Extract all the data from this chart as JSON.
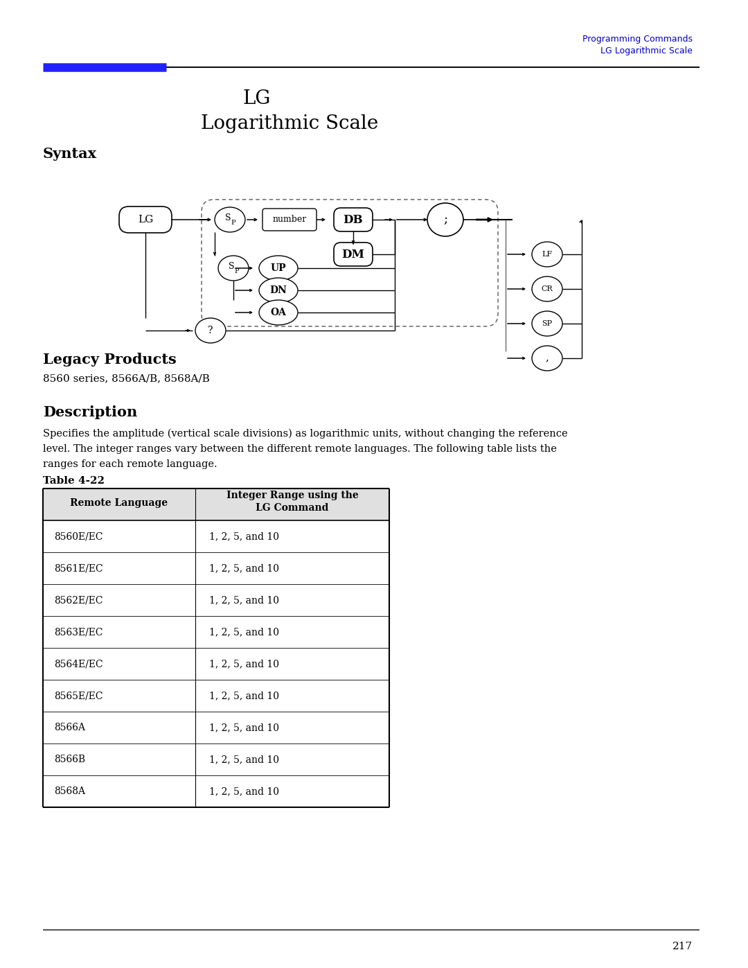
{
  "header_line1": "Programming Commands",
  "header_line2": "LG Logarithmic Scale",
  "header_color": "#0000CC",
  "blue_bar_color": "#2222FF",
  "title_line1": "LG",
  "title_line2": "Logarithmic Scale",
  "syntax_label": "Syntax",
  "legacy_label": "Legacy Products",
  "legacy_text": "8560 series, 8566A/B, 8568A/B",
  "description_label": "Description",
  "description_text": "Specifies the amplitude (vertical scale divisions) as logarithmic units, without changing the reference\nlevel. The integer ranges vary between the different remote languages. The following table lists the\nranges for each remote language.",
  "table_label": "Table 4-22",
  "table_col1_header": "Remote Language",
  "table_col2_header": "Integer Range using the\nLG Command",
  "table_rows": [
    [
      "8560E/EC",
      "1, 2, 5, and 10"
    ],
    [
      "8561E/EC",
      "1, 2, 5, and 10"
    ],
    [
      "8562E/EC",
      "1, 2, 5, and 10"
    ],
    [
      "8563E/EC",
      "1, 2, 5, and 10"
    ],
    [
      "8564E/EC",
      "1, 2, 5, and 10"
    ],
    [
      "8565E/EC",
      "1, 2, 5, and 10"
    ],
    [
      "8566A",
      "1, 2, 5, and 10"
    ],
    [
      "8566B",
      "1, 2, 5, and 10"
    ],
    [
      "8568A",
      "1, 2, 5, and 10"
    ]
  ],
  "page_number": "217",
  "bg_color": "#ffffff",
  "text_color": "#000000"
}
